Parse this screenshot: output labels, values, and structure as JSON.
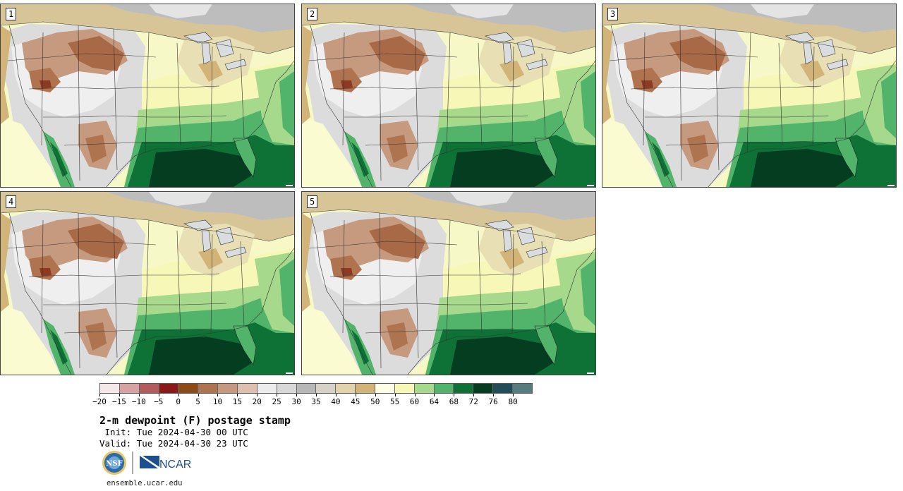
{
  "panels": [
    {
      "label": "1"
    },
    {
      "label": "2"
    },
    {
      "label": "3"
    },
    {
      "label": "4"
    },
    {
      "label": "5"
    }
  ],
  "colorbar": {
    "colors": [
      "#f6e8e8",
      "#d8a2a2",
      "#b25c5c",
      "#8a1a1a",
      "#8c4a16",
      "#ae7450",
      "#c6997e",
      "#dfc0ae",
      "#ececec",
      "#d8d8d8",
      "#b7b7b7",
      "#d7d2c6",
      "#e3d3a8",
      "#d2b478",
      "#ffffe6",
      "#f7f8b7",
      "#a6d98b",
      "#52b36a",
      "#0e7236",
      "#053d20",
      "#1f4d58",
      "#567c80"
    ],
    "tick_labels": [
      "−20",
      "−15",
      "−10",
      "−5",
      "0",
      "5",
      "10",
      "15",
      "20",
      "25",
      "30",
      "35",
      "40",
      "45",
      "50",
      "55",
      "60",
      "64",
      "68",
      "72",
      "76",
      "80"
    ]
  },
  "title": "2-m dewpoint (F) postage stamp",
  "init": " Init: Tue 2024-04-30 00 UTC",
  "valid": "Valid: Tue 2024-04-30 23 UTC",
  "logos": {
    "nsf_text": "NSF",
    "ncar_text": "NCAR"
  },
  "url": "ensemble.ucar.edu"
}
